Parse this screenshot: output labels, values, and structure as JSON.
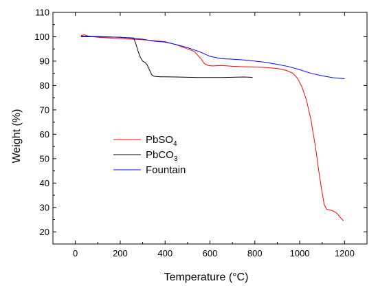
{
  "chart_data": {
    "type": "line",
    "xlabel": "Temperature (°C)",
    "ylabel": "Weight (%)",
    "xlim": [
      -100,
      1300
    ],
    "ylim": [
      15,
      110
    ],
    "x_ticks": [
      0,
      200,
      400,
      600,
      800,
      1000,
      1200
    ],
    "y_ticks": [
      20,
      30,
      40,
      50,
      60,
      70,
      80,
      90,
      100,
      110
    ],
    "grid": false,
    "legend_position": "center-left",
    "series": [
      {
        "name": "PbSO",
        "subscript": "4",
        "color": "#ff0000",
        "x": [
          25,
          40,
          60,
          100,
          200,
          300,
          400,
          450,
          500,
          530,
          560,
          575,
          590,
          610,
          650,
          700,
          750,
          800,
          850,
          900,
          940,
          970,
          990,
          1010,
          1030,
          1050,
          1070,
          1085,
          1100,
          1110,
          1120,
          1130,
          1140,
          1150,
          1160,
          1170,
          1180,
          1190,
          1195
        ],
        "y": [
          100.5,
          100.8,
          100.2,
          99.8,
          99.2,
          98.8,
          98.0,
          96.7,
          95.0,
          94.0,
          91.0,
          89.0,
          88.3,
          88.0,
          88.2,
          87.9,
          87.7,
          87.6,
          87.4,
          87.0,
          86.2,
          85.0,
          83.0,
          79.5,
          74.0,
          66.0,
          55.0,
          45.0,
          36.0,
          31.0,
          29.3,
          29.0,
          28.8,
          28.5,
          28.0,
          27.2,
          26.0,
          25.0,
          24.5
        ]
      },
      {
        "name": "PbCO",
        "subscript": "3",
        "color": "#000000",
        "x": [
          25,
          100,
          200,
          260,
          270,
          280,
          290,
          300,
          310,
          320,
          330,
          340,
          350,
          360,
          380,
          400,
          450,
          500,
          550,
          600,
          650,
          700,
          750,
          780,
          790
        ],
        "y": [
          100.2,
          100.1,
          99.8,
          99.5,
          97.0,
          94.0,
          91.5,
          90.0,
          89.5,
          88.5,
          86.5,
          84.5,
          83.8,
          83.7,
          83.6,
          83.6,
          83.5,
          83.4,
          83.3,
          83.3,
          83.3,
          83.4,
          83.5,
          83.4,
          83.3
        ]
      },
      {
        "name": "Fountain",
        "color": "#0000ff",
        "x": [
          25,
          100,
          200,
          300,
          350,
          400,
          450,
          500,
          550,
          600,
          650,
          700,
          750,
          800,
          850,
          900,
          950,
          1000,
          1050,
          1100,
          1150,
          1200
        ],
        "y": [
          100.0,
          100.0,
          99.8,
          99.0,
          98.2,
          97.8,
          96.8,
          95.5,
          94.0,
          92.0,
          91.0,
          90.8,
          90.5,
          90.0,
          89.5,
          88.7,
          87.8,
          86.5,
          85.0,
          84.0,
          83.2,
          82.8
        ]
      }
    ]
  }
}
